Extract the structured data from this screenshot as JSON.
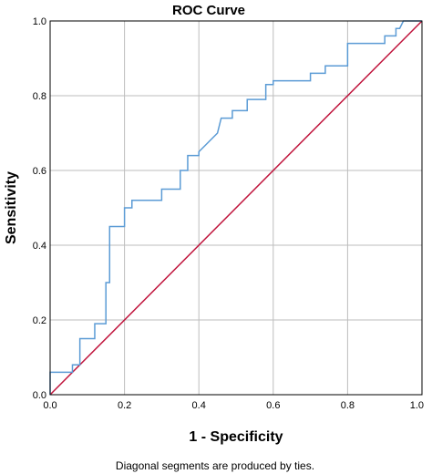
{
  "chart_data": {
    "type": "line",
    "title": "ROC Curve",
    "xlabel": "1 - Specificity",
    "ylabel": "Sensitivity",
    "xlim": [
      0,
      1
    ],
    "ylim": [
      0,
      1
    ],
    "x_ticks": [
      "0.0",
      "0.2",
      "0.4",
      "0.6",
      "0.8",
      "1.0"
    ],
    "y_ticks": [
      "0.0",
      "0.2",
      "0.4",
      "0.6",
      "0.8",
      "1.0"
    ],
    "grid": true,
    "footnote": "Diagonal segments are produced by ties.",
    "series": [
      {
        "color": "#5b9bd5",
        "x": [
          0.0,
          0.0,
          0.06,
          0.06,
          0.08,
          0.08,
          0.12,
          0.12,
          0.15,
          0.15,
          0.16,
          0.16,
          0.2,
          0.2,
          0.22,
          0.22,
          0.3,
          0.3,
          0.35,
          0.35,
          0.37,
          0.37,
          0.4,
          0.4,
          0.45,
          0.46,
          0.49,
          0.49,
          0.53,
          0.53,
          0.58,
          0.58,
          0.6,
          0.6,
          0.7,
          0.7,
          0.74,
          0.74,
          0.8,
          0.8,
          0.9,
          0.9,
          0.93,
          0.93,
          0.94,
          0.95,
          1.0
        ],
        "y": [
          0.0,
          0.06,
          0.06,
          0.08,
          0.08,
          0.15,
          0.15,
          0.19,
          0.19,
          0.3,
          0.3,
          0.45,
          0.45,
          0.5,
          0.5,
          0.52,
          0.52,
          0.55,
          0.55,
          0.6,
          0.6,
          0.64,
          0.64,
          0.65,
          0.7,
          0.74,
          0.74,
          0.76,
          0.76,
          0.79,
          0.79,
          0.83,
          0.83,
          0.84,
          0.84,
          0.86,
          0.86,
          0.88,
          0.88,
          0.94,
          0.94,
          0.96,
          0.96,
          0.98,
          0.98,
          1.0,
          1.0
        ]
      },
      {
        "color": "#c0143c",
        "x": [
          0.0,
          1.0
        ],
        "y": [
          0.0,
          1.0
        ]
      }
    ]
  }
}
